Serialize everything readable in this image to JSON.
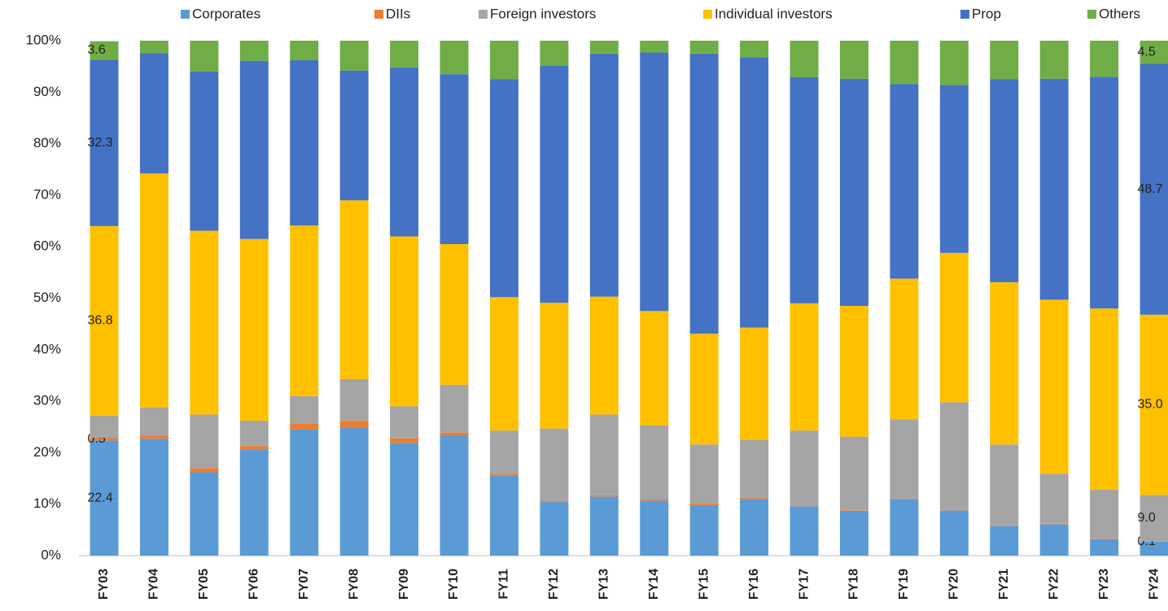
{
  "chart_data": {
    "type": "stacked_bar_percent",
    "categories": [
      "FY03",
      "FY04",
      "FY05",
      "FY06",
      "FY07",
      "FY08",
      "FY09",
      "FY10",
      "FY11",
      "FY12",
      "FY13",
      "FY14",
      "FY15",
      "FY16",
      "FY17",
      "FY18",
      "FY19",
      "FY20",
      "FY21",
      "FY22",
      "FY23",
      "FY24"
    ],
    "series": [
      {
        "name": "Corporates",
        "color": "#5b9bd5",
        "values": [
          22.4,
          22.7,
          16.2,
          20.6,
          24.5,
          24.8,
          21.9,
          23.3,
          15.6,
          10.4,
          11.5,
          10.7,
          9.8,
          11.0,
          9.6,
          8.7,
          11.0,
          8.8,
          5.8,
          6.1,
          3.2,
          2.7
        ],
        "value_labels": [
          "22.4",
          null,
          null,
          null,
          null,
          null,
          null,
          null,
          null,
          null,
          null,
          null,
          null,
          null,
          null,
          null,
          null,
          null,
          null,
          null,
          null,
          null
        ]
      },
      {
        "name": "DIIs",
        "color": "#ed7d31",
        "values": [
          0.5,
          0.6,
          0.8,
          0.7,
          1.2,
          1.4,
          0.9,
          0.6,
          0.2,
          0.2,
          0.2,
          0.2,
          0.3,
          0.2,
          0.1,
          0.1,
          0.1,
          0.1,
          0.1,
          0.1,
          0.1,
          0.1
        ],
        "value_labels": [
          "0.5",
          null,
          null,
          null,
          null,
          null,
          null,
          null,
          null,
          null,
          null,
          null,
          null,
          null,
          null,
          null,
          null,
          null,
          null,
          null,
          null,
          "0.1"
        ]
      },
      {
        "name": "Foreign investors",
        "color": "#a5a5a5",
        "values": [
          4.3,
          5.5,
          10.4,
          4.9,
          5.3,
          8.1,
          6.2,
          9.3,
          8.5,
          14.1,
          15.7,
          14.4,
          11.5,
          11.3,
          14.6,
          14.3,
          15.4,
          20.9,
          15.7,
          9.7,
          9.5,
          9.0
        ],
        "value_labels": [
          null,
          null,
          null,
          null,
          null,
          null,
          null,
          null,
          null,
          null,
          null,
          null,
          null,
          null,
          null,
          null,
          null,
          null,
          null,
          null,
          null,
          "9.0"
        ]
      },
      {
        "name": "Individual investors",
        "color": "#ffc000",
        "values": [
          36.8,
          45.4,
          35.7,
          35.3,
          33.1,
          34.7,
          33.0,
          27.3,
          25.9,
          24.4,
          22.9,
          22.2,
          21.5,
          21.8,
          24.7,
          25.4,
          27.3,
          29.0,
          31.5,
          33.8,
          35.2,
          35.0
        ],
        "value_labels": [
          "36.8",
          null,
          null,
          null,
          null,
          null,
          null,
          null,
          null,
          null,
          null,
          null,
          null,
          null,
          null,
          null,
          null,
          null,
          null,
          null,
          null,
          "35.0"
        ]
      },
      {
        "name": "Prop",
        "color": "#4472c4",
        "values": [
          32.3,
          23.4,
          30.9,
          34.6,
          32.1,
          25.2,
          32.8,
          33.0,
          42.3,
          46.0,
          47.2,
          50.2,
          54.4,
          52.5,
          43.9,
          44.1,
          37.8,
          32.6,
          39.4,
          42.9,
          45.0,
          48.7
        ],
        "value_labels": [
          "32.3",
          null,
          null,
          null,
          null,
          null,
          null,
          null,
          null,
          null,
          null,
          null,
          null,
          null,
          null,
          null,
          null,
          null,
          null,
          null,
          null,
          "48.7"
        ]
      },
      {
        "name": "Others",
        "color": "#70ad47",
        "values": [
          3.6,
          2.4,
          6.0,
          3.9,
          3.8,
          5.8,
          5.2,
          6.5,
          7.5,
          4.9,
          2.5,
          2.3,
          2.5,
          3.2,
          7.1,
          7.4,
          8.4,
          8.6,
          7.5,
          7.4,
          7.0,
          4.5
        ],
        "value_labels": [
          "3.6",
          null,
          null,
          null,
          null,
          null,
          null,
          null,
          null,
          null,
          null,
          null,
          null,
          null,
          null,
          null,
          null,
          null,
          null,
          null,
          null,
          "4.5"
        ]
      }
    ],
    "ylim": [
      0,
      100
    ],
    "yticks": [
      {
        "value": 0,
        "label": "0%"
      },
      {
        "value": 10,
        "label": "10%"
      },
      {
        "value": 20,
        "label": "20%"
      },
      {
        "value": 30,
        "label": "30%"
      },
      {
        "value": 40,
        "label": "40%"
      },
      {
        "value": 50,
        "label": "50%"
      },
      {
        "value": 60,
        "label": "60%"
      },
      {
        "value": 70,
        "label": "70%"
      },
      {
        "value": 80,
        "label": "80%"
      },
      {
        "value": 90,
        "label": "90%"
      },
      {
        "value": 100,
        "label": "100%"
      }
    ],
    "grid": false,
    "legend": "top"
  }
}
